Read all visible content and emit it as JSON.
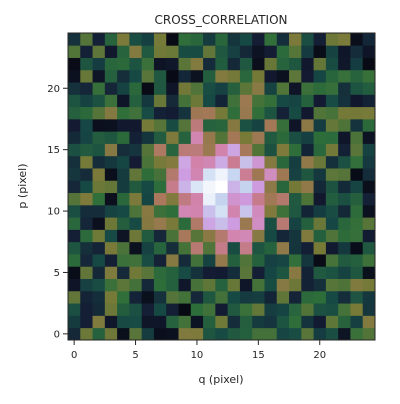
{
  "chart_data": {
    "type": "heatmap",
    "title": "CROSS_CORRELATION",
    "xlabel": "q (pixel)",
    "ylabel": "p (pixel)",
    "x_ticks": [
      0,
      5,
      10,
      15,
      20
    ],
    "y_ticks": [
      0,
      5,
      10,
      15,
      20
    ],
    "xlim": [
      -0.5,
      24.5
    ],
    "ylim": [
      -0.5,
      24.5
    ],
    "grid": false,
    "colormap": "cubehelix",
    "peak": {
      "q": 12,
      "p": 12,
      "sigma": 3.2,
      "amplitude": 1.0
    },
    "noise_level": 0.24,
    "seed": 7
  }
}
